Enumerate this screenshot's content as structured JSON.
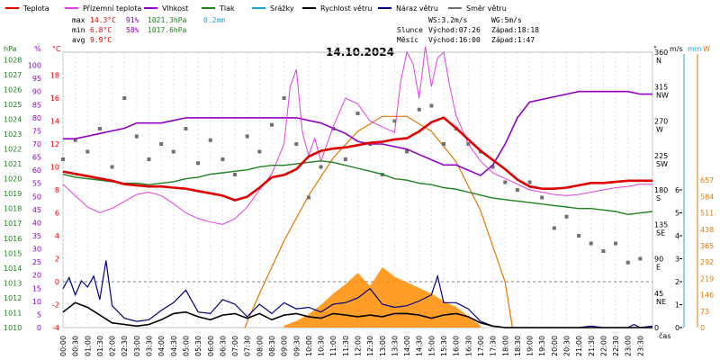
{
  "legend": [
    {
      "label": "Teplota",
      "color": "#e00000"
    },
    {
      "label": "Přízemní teplota",
      "color": "#e040e0"
    },
    {
      "label": "Vlhkost",
      "color": "#9000c0"
    },
    {
      "label": "Tlak",
      "color": "#208020"
    },
    {
      "label": "Srážky",
      "color": "#20a0d0"
    },
    {
      "label": "Rychlost větru",
      "color": "#000000"
    },
    {
      "label": "Náraz větru",
      "color": "#000080"
    },
    {
      "label": "Směr větru",
      "color": "#707070"
    }
  ],
  "stats": {
    "max_label": "max",
    "max_temp": "14.3°C",
    "max_hum": "91%",
    "max_press": "1021.3hPa",
    "max_rain": "0.2mm",
    "min_label": "min",
    "min_temp": "6.8°C",
    "min_hum": "58%",
    "min_press": "1017.6hPa",
    "avg_label": "avg",
    "avg_temp": "9.9°C"
  },
  "wind_info": {
    "ws": "WS:3.2m/s",
    "wg": "WG:5m/s"
  },
  "sun_info": {
    "label": "Slunce",
    "rise": "Východ:07:26",
    "set": "Západ:18:18"
  },
  "moon_info": {
    "label": "Měsíc",
    "rise": "Východ:16:00",
    "set": "Západ:1:47"
  },
  "date": "14.10.2024",
  "axis_units": {
    "press": "hPa",
    "hum": "%",
    "temp": "°C",
    "dir": "°",
    "wind": "m/s",
    "rain": "mm",
    "sun": "W",
    "time": "čas"
  },
  "colors": {
    "temp": "#e00000",
    "ground": "#e040e0",
    "hum": "#9000c0",
    "press": "#208020",
    "rain": "#20a0d0",
    "wind": "#000000",
    "gust": "#000080",
    "dir": "#707070",
    "sun": "#e07800"
  },
  "chart_data": {
    "type": "line",
    "time_labels": [
      "00:00",
      "00:30",
      "01:00",
      "01:30",
      "02:00",
      "02:30",
      "03:00",
      "03:30",
      "04:00",
      "04:30",
      "05:00",
      "05:30",
      "06:00",
      "06:30",
      "07:00",
      "07:30",
      "08:00",
      "08:30",
      "09:00",
      "09:30",
      "10:00",
      "10:30",
      "11:00",
      "11:30",
      "12:00",
      "12:30",
      "13:00",
      "13:30",
      "14:00",
      "14:30",
      "15:00",
      "15:30",
      "16:00",
      "16:30",
      "17:00",
      "17:30",
      "18:00",
      "18:30",
      "19:00",
      "19:30",
      "20:00",
      "20:30",
      "21:00",
      "21:30",
      "22:00",
      "22:30",
      "23:00",
      "23:30"
    ],
    "press_ticks": [
      "1010",
      "1011",
      "1012",
      "1013",
      "1014",
      "1015",
      "1016",
      "1017",
      "1018",
      "1019",
      "1020",
      "1021",
      "1022",
      "1023",
      "1024",
      "1025",
      "1026",
      "1027",
      "1028"
    ],
    "hum_ticks": [
      "0",
      "5",
      "10",
      "15",
      "20",
      "25",
      "30",
      "35",
      "40",
      "45",
      "50",
      "55",
      "60",
      "65",
      "70",
      "75",
      "80",
      "85",
      "90",
      "95",
      "100"
    ],
    "temp_ticks": [
      "-4",
      "-2",
      "0",
      "2",
      "4",
      "6",
      "8",
      "10",
      "12",
      "14",
      "16",
      "18"
    ],
    "dir_ticks": [
      [
        "360",
        "N"
      ],
      [
        "315",
        "NW"
      ],
      [
        "270",
        "W"
      ],
      [
        "225",
        "SW"
      ],
      [
        "180",
        "S"
      ],
      [
        "135",
        "SE"
      ],
      [
        "90",
        "E"
      ],
      [
        "45",
        "NE"
      ],
      [
        "0",
        ""
      ]
    ],
    "wind_ticks": [
      "0",
      "1",
      "2",
      "3",
      "4",
      "5",
      "6"
    ],
    "sun_ticks": [
      "0",
      "73",
      "146",
      "219",
      "292",
      "365",
      "438",
      "511",
      "584",
      "657"
    ],
    "xlim": [
      0,
      24
    ],
    "temp_ylim": [
      -4,
      20
    ],
    "press_ylim": [
      1010,
      1028.5
    ],
    "hum_ylim": [
      0,
      105
    ],
    "wind_ylim": [
      0,
      6
    ],
    "dir_ylim": [
      0,
      360
    ],
    "sun_ylim": [
      0,
      730
    ],
    "temperature": {
      "name": "Teplota",
      "x": [
        0,
        0.5,
        1,
        1.5,
        2,
        2.5,
        3,
        3.5,
        4,
        4.5,
        5,
        5.5,
        6,
        6.5,
        7,
        7.5,
        8,
        8.5,
        9,
        9.5,
        10,
        10.5,
        11,
        11.5,
        12,
        12.5,
        13,
        13.5,
        14,
        14.5,
        15,
        15.5,
        16,
        16.5,
        17,
        17.5,
        18,
        18.5,
        19,
        19.5,
        20,
        20.5,
        21,
        21.5,
        22,
        22.5,
        23,
        23.5,
        24
      ],
      "y": [
        9.6,
        9.4,
        9.2,
        9.0,
        8.8,
        8.5,
        8.4,
        8.3,
        8.3,
        8.2,
        8.1,
        7.9,
        7.7,
        7.5,
        7.1,
        7.4,
        8.2,
        9.1,
        9.3,
        9.8,
        10.9,
        11.4,
        11.6,
        11.7,
        11.9,
        12.1,
        12.2,
        12.4,
        12.5,
        13.1,
        13.9,
        14.3,
        13.4,
        12.4,
        11.4,
        10.6,
        9.8,
        8.9,
        8.3,
        8.1,
        8.1,
        8.2,
        8.4,
        8.6,
        8.6,
        8.7,
        8.8,
        8.8,
        8.8
      ]
    },
    "ground_temp": {
      "name": "Přízemní teplota",
      "x": [
        0,
        0.5,
        1,
        1.5,
        2,
        2.5,
        3,
        3.5,
        4,
        4.5,
        5,
        5.5,
        6,
        6.5,
        7,
        7.5,
        8,
        8.5,
        9,
        9.25,
        9.5,
        9.75,
        10,
        10.25,
        10.5,
        11,
        11.5,
        12,
        12.5,
        13,
        13.5,
        13.75,
        14,
        14.25,
        14.5,
        14.75,
        15,
        15.25,
        15.5,
        15.75,
        16,
        16.5,
        17,
        17.5,
        18,
        18.5,
        19,
        19.5,
        20,
        20.5,
        21,
        21.5,
        22,
        22.5,
        23,
        23.5,
        24
      ],
      "y": [
        8.5,
        7.5,
        6.5,
        6.0,
        6.4,
        7.0,
        7.6,
        7.8,
        7.5,
        6.8,
        6.0,
        5.5,
        5.2,
        5.0,
        5.5,
        6.5,
        8.0,
        9.4,
        12.0,
        17.0,
        18.5,
        13.0,
        11.0,
        12.5,
        10.5,
        13.5,
        16.0,
        15.5,
        14.0,
        13.5,
        13.0,
        17.5,
        20.0,
        19.0,
        16.0,
        20.5,
        17.0,
        19.5,
        20.0,
        17.0,
        14.5,
        12.0,
        10.5,
        9.5,
        9.0,
        8.5,
        8.0,
        7.8,
        7.6,
        7.5,
        7.6,
        7.8,
        8.0,
        8.2,
        8.3,
        8.5,
        8.5
      ]
    },
    "humidity": {
      "name": "Vlhkost",
      "x": [
        0,
        0.5,
        1,
        1.5,
        2,
        2.5,
        3,
        3.5,
        4,
        4.5,
        5,
        5.5,
        6,
        6.5,
        7,
        7.5,
        8,
        8.5,
        9,
        9.5,
        10,
        10.5,
        11,
        11.5,
        12,
        12.5,
        13,
        13.5,
        14,
        14.5,
        15,
        15.5,
        16,
        16.5,
        17,
        17.5,
        18,
        18.5,
        19,
        19.5,
        20,
        20.5,
        21,
        21.5,
        22,
        22.5,
        23,
        23.5,
        24
      ],
      "y": [
        72,
        72,
        73,
        74,
        75,
        76,
        78,
        78,
        78,
        79,
        80,
        80,
        80,
        80,
        80,
        80,
        80,
        80,
        80,
        80,
        79,
        78,
        76,
        74,
        71,
        70,
        70,
        69,
        68,
        66,
        64,
        62,
        62,
        60,
        58,
        62,
        70,
        80,
        86,
        87,
        88,
        89,
        90,
        90,
        90,
        90,
        90,
        89,
        89
      ]
    },
    "pressure": {
      "name": "Tlak",
      "x": [
        0,
        0.5,
        1,
        1.5,
        2,
        2.5,
        3,
        3.5,
        4,
        4.5,
        5,
        5.5,
        6,
        6.5,
        7,
        7.5,
        8,
        8.5,
        9,
        9.5,
        10,
        10.5,
        11,
        11.5,
        12,
        12.5,
        13,
        13.5,
        14,
        14.5,
        15,
        15.5,
        16,
        16.5,
        17,
        17.5,
        18,
        18.5,
        19,
        19.5,
        20,
        20.5,
        21,
        21.5,
        22,
        22.5,
        23,
        23.5,
        24
      ],
      "y": [
        1020.3,
        1020.1,
        1020.0,
        1019.9,
        1019.8,
        1019.7,
        1019.7,
        1019.6,
        1019.7,
        1019.8,
        1020.0,
        1020.1,
        1020.3,
        1020.4,
        1020.5,
        1020.6,
        1020.8,
        1020.9,
        1020.9,
        1021.0,
        1021.1,
        1021.2,
        1021.1,
        1020.9,
        1020.7,
        1020.5,
        1020.3,
        1020.0,
        1019.9,
        1019.7,
        1019.6,
        1019.4,
        1019.3,
        1019.1,
        1018.9,
        1018.7,
        1018.6,
        1018.5,
        1018.4,
        1018.3,
        1018.2,
        1018.1,
        1018.0,
        1018.0,
        1017.9,
        1017.8,
        1017.6,
        1017.7,
        1017.8
      ]
    },
    "wind_speed": {
      "name": "Rychlost větru",
      "x": [
        0,
        0.5,
        1,
        1.5,
        2,
        2.5,
        3,
        3.5,
        4,
        4.5,
        5,
        5.5,
        6,
        6.5,
        7,
        7.5,
        8,
        8.5,
        9,
        9.5,
        10,
        10.5,
        11,
        11.5,
        12,
        12.5,
        13,
        13.5,
        14,
        14.5,
        15,
        15.5,
        16,
        16.5,
        17,
        17.5,
        18,
        18.5,
        19,
        19.5,
        20,
        20.5,
        21,
        21.5,
        22,
        22.5,
        23,
        23.5,
        24
      ],
      "y": [
        1.0,
        1.6,
        1.3,
        0.8,
        0.3,
        0.2,
        0.1,
        0.2,
        0.5,
        0.9,
        1.0,
        0.7,
        0.5,
        0.8,
        0.9,
        0.6,
        0.9,
        0.5,
        0.8,
        0.9,
        0.7,
        0.6,
        0.9,
        0.8,
        0.7,
        0.8,
        0.7,
        0.9,
        0.9,
        0.8,
        0.6,
        0.8,
        0.9,
        0.7,
        0.3,
        0.1,
        0.0,
        0.0,
        0.0,
        0.0,
        0.0,
        0.0,
        0.0,
        0.0,
        0.0,
        0.0,
        0.0,
        0.0,
        0.0
      ]
    },
    "wind_gust": {
      "name": "Náraz větru",
      "x": [
        0,
        0.25,
        0.5,
        0.75,
        1,
        1.25,
        1.5,
        1.75,
        2,
        2.5,
        3,
        3.5,
        4,
        4.5,
        5,
        5.5,
        6,
        6.5,
        7,
        7.5,
        8,
        8.5,
        9,
        9.5,
        10,
        10.5,
        11,
        11.5,
        12,
        12.5,
        13,
        13.5,
        14,
        14.5,
        15,
        15.25,
        15.5,
        16,
        16.5,
        17,
        17.5,
        18,
        18.5,
        19,
        19.5,
        20,
        20.5,
        21,
        21.5,
        22,
        22.5,
        23,
        23.25,
        23.5,
        24
      ],
      "y": [
        2.5,
        3.2,
        2.1,
        3.0,
        2.6,
        3.3,
        1.8,
        4.3,
        1.4,
        0.6,
        0.4,
        0.5,
        1.1,
        1.6,
        2.4,
        1.0,
        0.9,
        1.8,
        1.5,
        0.7,
        1.5,
        0.9,
        1.6,
        1.2,
        1.3,
        1.0,
        1.5,
        1.6,
        1.9,
        2.5,
        1.5,
        1.3,
        1.4,
        1.7,
        2.1,
        3.3,
        1.6,
        1.6,
        1.2,
        0.4,
        0.1,
        0.0,
        0.0,
        0.0,
        0.0,
        0.0,
        0.0,
        0.0,
        0.1,
        0.0,
        0.0,
        0.0,
        0.2,
        0.0,
        0.1
      ]
    },
    "solar": {
      "name": "",
      "x": [
        9,
        9.5,
        10,
        10.5,
        11,
        11.5,
        12,
        12.5,
        13,
        13.5,
        14,
        14.5,
        15,
        15.5,
        16,
        16.5,
        17
      ],
      "y": [
        5,
        18,
        35,
        60,
        90,
        115,
        145,
        110,
        160,
        135,
        120,
        105,
        90,
        70,
        55,
        30,
        5
      ]
    },
    "solar_theory": {
      "x": [
        7.4,
        8,
        9,
        10,
        11,
        12,
        13,
        14,
        15,
        16,
        17,
        18,
        18.3
      ],
      "y": [
        0,
        90,
        230,
        350,
        450,
        520,
        560,
        560,
        520,
        440,
        310,
        120,
        0
      ]
    },
    "wind_dir": {
      "name": "Směr větru",
      "x": [
        0,
        0.5,
        1,
        1.5,
        2,
        2.5,
        3,
        3.5,
        4,
        4.5,
        5,
        5.5,
        6,
        6.5,
        7,
        7.5,
        8,
        8.5,
        9,
        9.5,
        10,
        10.5,
        11,
        11.5,
        12,
        12.5,
        13,
        13.5,
        14,
        14.5,
        15,
        15.5,
        16,
        16.5,
        17,
        17.5,
        18,
        18.5,
        19,
        19.5,
        20,
        20.5,
        21,
        21.5,
        22,
        22.5,
        23,
        23.5
      ],
      "y": [
        220,
        245,
        230,
        260,
        210,
        300,
        250,
        220,
        240,
        230,
        260,
        215,
        245,
        220,
        200,
        250,
        230,
        265,
        300,
        240,
        170,
        210,
        260,
        220,
        280,
        240,
        200,
        270,
        230,
        285,
        290,
        240,
        260,
        240,
        230,
        210,
        190,
        180,
        190,
        170,
        130,
        145,
        120,
        110,
        100,
        110,
        85,
        90
      ]
    }
  }
}
